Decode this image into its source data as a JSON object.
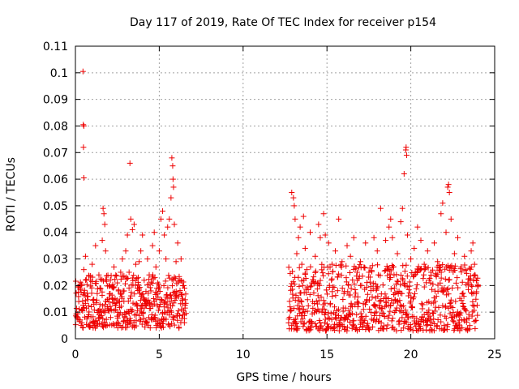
{
  "chart_data": {
    "type": "scatter",
    "title": "Day 117 of 2019, Rate Of TEC Index for receiver p154",
    "xlabel": "GPS time / hours",
    "ylabel": "ROTI / TECUs",
    "xlim": [
      0,
      25
    ],
    "ylim": [
      0,
      0.11
    ],
    "grid": true,
    "marker": "+",
    "color": "#ee0000",
    "x_ticks": [
      "0",
      "5",
      "10",
      "15",
      "20",
      "25"
    ],
    "x_tick_values": [
      0,
      5,
      10,
      15,
      20,
      25
    ],
    "y_ticks": [
      "0",
      "0.01",
      "0.02",
      "0.03",
      "0.04",
      "0.05",
      "0.06",
      "0.07",
      "0.08",
      "0.09",
      "0.1",
      "0.11"
    ],
    "y_tick_values": [
      0,
      0.01,
      0.02,
      0.03,
      0.04,
      0.05,
      0.06,
      0.07,
      0.08,
      0.09,
      0.1,
      0.11
    ],
    "series": [
      {
        "name": "ROTI",
        "points": [
          [
            0.1,
            0.008
          ],
          [
            0.2,
            0.014
          ],
          [
            0.3,
            0.019
          ],
          [
            0.4,
            0.011
          ],
          [
            0.5,
            0.026
          ],
          [
            0.45,
            0.1005
          ],
          [
            0.47,
            0.0805
          ],
          [
            0.5,
            0.08
          ],
          [
            0.48,
            0.072
          ],
          [
            0.5,
            0.0605
          ],
          [
            0.6,
            0.031
          ],
          [
            0.7,
            0.016
          ],
          [
            0.8,
            0.009
          ],
          [
            0.9,
            0.022
          ],
          [
            1.0,
            0.028
          ],
          [
            1.1,
            0.013
          ],
          [
            1.2,
            0.035
          ],
          [
            1.3,
            0.017
          ],
          [
            1.4,
            0.024
          ],
          [
            1.5,
            0.01
          ],
          [
            1.6,
            0.037
          ],
          [
            1.65,
            0.049
          ],
          [
            1.7,
            0.047
          ],
          [
            1.75,
            0.043
          ],
          [
            1.8,
            0.033
          ],
          [
            1.9,
            0.012
          ],
          [
            2.0,
            0.02
          ],
          [
            2.1,
            0.008
          ],
          [
            2.2,
            0.015
          ],
          [
            2.3,
            0.027
          ],
          [
            2.4,
            0.011
          ],
          [
            2.5,
            0.021
          ],
          [
            2.6,
            0.014
          ],
          [
            2.7,
            0.025
          ],
          [
            2.8,
            0.03
          ],
          [
            2.9,
            0.018
          ],
          [
            3.0,
            0.033
          ],
          [
            3.1,
            0.039
          ],
          [
            3.2,
            0.025
          ],
          [
            3.25,
            0.066
          ],
          [
            3.3,
            0.045
          ],
          [
            3.4,
            0.041
          ],
          [
            3.5,
            0.043
          ],
          [
            3.6,
            0.028
          ],
          [
            3.7,
            0.019
          ],
          [
            3.8,
            0.029
          ],
          [
            3.9,
            0.033
          ],
          [
            4.0,
            0.039
          ],
          [
            4.1,
            0.022
          ],
          [
            4.2,
            0.014
          ],
          [
            4.3,
            0.03
          ],
          [
            4.4,
            0.024
          ],
          [
            4.5,
            0.018
          ],
          [
            4.6,
            0.035
          ],
          [
            4.7,
            0.04
          ],
          [
            4.8,
            0.027
          ],
          [
            4.9,
            0.021
          ],
          [
            5.0,
            0.033
          ],
          [
            5.1,
            0.045
          ],
          [
            5.2,
            0.048
          ],
          [
            5.3,
            0.039
          ],
          [
            5.4,
            0.03
          ],
          [
            5.5,
            0.042
          ],
          [
            5.6,
            0.045
          ],
          [
            5.7,
            0.053
          ],
          [
            5.75,
            0.068
          ],
          [
            5.8,
            0.065
          ],
          [
            5.82,
            0.06
          ],
          [
            5.85,
            0.057
          ],
          [
            5.9,
            0.043
          ],
          [
            6.0,
            0.029
          ],
          [
            6.1,
            0.036
          ],
          [
            6.2,
            0.022
          ],
          [
            6.3,
            0.03
          ],
          [
            6.4,
            0.015
          ],
          [
            6.5,
            0.009
          ],
          [
            12.8,
            0.012
          ],
          [
            12.9,
            0.055
          ],
          [
            13.0,
            0.053
          ],
          [
            13.05,
            0.05
          ],
          [
            13.1,
            0.045
          ],
          [
            13.2,
            0.032
          ],
          [
            13.3,
            0.038
          ],
          [
            13.4,
            0.042
          ],
          [
            13.5,
            0.028
          ],
          [
            13.6,
            0.046
          ],
          [
            13.7,
            0.034
          ],
          [
            13.8,
            0.026
          ],
          [
            14.0,
            0.04
          ],
          [
            14.1,
            0.021
          ],
          [
            14.3,
            0.031
          ],
          [
            14.5,
            0.043
          ],
          [
            14.6,
            0.038
          ],
          [
            14.8,
            0.047
          ],
          [
            14.9,
            0.039
          ],
          [
            15.1,
            0.036
          ],
          [
            15.3,
            0.028
          ],
          [
            15.5,
            0.033
          ],
          [
            15.7,
            0.045
          ],
          [
            15.9,
            0.029
          ],
          [
            16.2,
            0.035
          ],
          [
            16.4,
            0.031
          ],
          [
            16.6,
            0.038
          ],
          [
            16.8,
            0.022
          ],
          [
            17.0,
            0.029
          ],
          [
            17.3,
            0.036
          ],
          [
            17.5,
            0.025
          ],
          [
            17.8,
            0.038
          ],
          [
            18.0,
            0.033
          ],
          [
            18.2,
            0.049
          ],
          [
            18.5,
            0.037
          ],
          [
            18.7,
            0.042
          ],
          [
            18.8,
            0.045
          ],
          [
            18.9,
            0.038
          ],
          [
            19.0,
            0.024
          ],
          [
            19.2,
            0.032
          ],
          [
            19.4,
            0.044
          ],
          [
            19.5,
            0.049
          ],
          [
            19.6,
            0.062
          ],
          [
            19.7,
            0.071
          ],
          [
            19.72,
            0.072
          ],
          [
            19.75,
            0.069
          ],
          [
            19.8,
            0.039
          ],
          [
            20.0,
            0.03
          ],
          [
            20.2,
            0.034
          ],
          [
            20.4,
            0.042
          ],
          [
            20.6,
            0.037
          ],
          [
            20.8,
            0.028
          ],
          [
            21.0,
            0.033
          ],
          [
            21.2,
            0.025
          ],
          [
            21.4,
            0.036
          ],
          [
            21.6,
            0.029
          ],
          [
            21.8,
            0.047
          ],
          [
            21.9,
            0.051
          ],
          [
            22.1,
            0.04
          ],
          [
            22.2,
            0.057
          ],
          [
            22.25,
            0.058
          ],
          [
            22.3,
            0.055
          ],
          [
            22.4,
            0.045
          ],
          [
            22.6,
            0.032
          ],
          [
            22.8,
            0.038
          ],
          [
            23.0,
            0.027
          ],
          [
            23.2,
            0.031
          ],
          [
            23.4,
            0.021
          ],
          [
            23.6,
            0.033
          ],
          [
            23.7,
            0.036
          ],
          [
            23.8,
            0.028
          ],
          [
            23.9,
            0.017
          ]
        ],
        "dense_bands": [
          {
            "x_range": [
              0.0,
              6.6
            ],
            "roti_range": [
              0.004,
              0.024
            ]
          },
          {
            "x_range": [
              12.7,
              24.0
            ],
            "roti_range": [
              0.003,
              0.028
            ]
          }
        ]
      }
    ]
  }
}
